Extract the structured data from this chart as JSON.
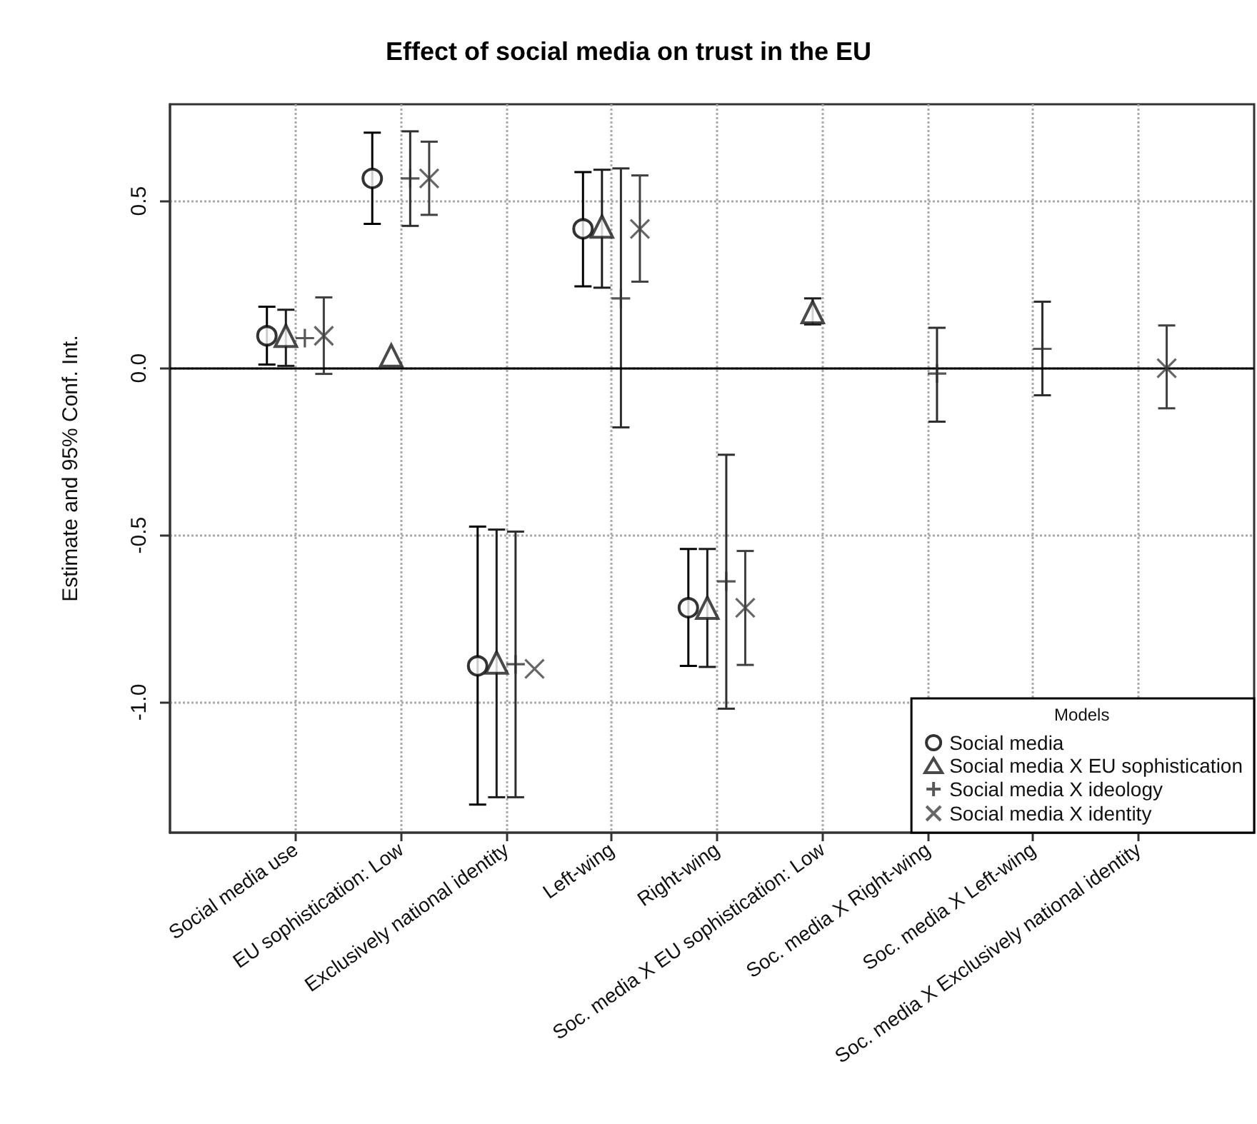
{
  "chart_data": {
    "type": "scatter",
    "title": "Effect of social media on trust in the EU",
    "ylabel": "Estimate and 95% Conf. Int.",
    "legend_title": "Models",
    "categories": [
      "Social media use",
      "EU sophistication: Low",
      "Exclusively national identity",
      "Left-wing",
      "Right-wing",
      "Soc. media X EU sophistication: Low",
      "Soc. media X Right-wing",
      "Soc. media X Left-wing",
      "Soc. media X Exclusively national identity"
    ],
    "series": [
      {
        "name": "Social media",
        "color": "#000000",
        "marker": "circle",
        "values": [
          0.097,
          0.568,
          -0.891,
          0.417,
          -0.717,
          null,
          null,
          null,
          null
        ],
        "errors": [
          [
            0.011,
            0.184
          ],
          [
            0.432,
            0.705
          ],
          [
            -1.306,
            -0.474
          ],
          [
            0.245,
            0.587
          ],
          [
            -0.891,
            -0.541
          ],
          null,
          null,
          null,
          null
        ]
      },
      {
        "name": "Social media X EU sophistication",
        "color": "#1c1c1c",
        "marker": "triangle",
        "values": [
          0.097,
          0.038,
          -0.881,
          0.424,
          -0.717,
          0.168,
          null,
          null,
          null
        ],
        "errors": [
          [
            0.007,
            0.175
          ],
          null,
          [
            -1.284,
            -0.483
          ],
          [
            0.241,
            0.594
          ],
          [
            -0.894,
            -0.541
          ],
          [
            0.131,
            0.209
          ],
          null,
          null,
          null
        ]
      },
      {
        "name": "Social media X ideology",
        "color": "#2e2e2e",
        "marker": "plus",
        "values": [
          0.09,
          0.568,
          -0.886,
          0.209,
          -0.638,
          null,
          -0.016,
          0.058,
          null
        ],
        "errors": [
          null,
          [
            0.426,
            0.709
          ],
          [
            -1.284,
            -0.489
          ],
          [
            -0.177,
            0.598
          ],
          [
            -1.019,
            -0.259
          ],
          null,
          [
            -0.16,
            0.121
          ],
          [
            -0.081,
            0.199
          ],
          null
        ]
      },
      {
        "name": "Social media X identity",
        "color": "#404040",
        "marker": "cross",
        "values": [
          0.097,
          0.568,
          -0.9,
          0.417,
          -0.717,
          null,
          null,
          null,
          0.0
        ],
        "errors": [
          [
            -0.017,
            0.212
          ],
          [
            0.459,
            0.678
          ],
          null,
          [
            0.259,
            0.577
          ],
          [
            -0.888,
            -0.547
          ],
          null,
          null,
          null,
          [
            -0.12,
            0.128
          ]
        ]
      }
    ],
    "ylim": [
      -1.39,
      0.79
    ],
    "yticks": [
      {
        "value": -1,
        "label": "-1.0"
      },
      {
        "value": -0.5,
        "label": "-0.5"
      },
      {
        "value": 0,
        "label": "0.0"
      },
      {
        "value": 0.5,
        "label": "0.5"
      }
    ],
    "ref_lines": [
      {
        "axis": "y",
        "value": 0,
        "color": "#000000",
        "line_style": "solid"
      }
    ],
    "grid": true,
    "legend": "bottom right"
  }
}
